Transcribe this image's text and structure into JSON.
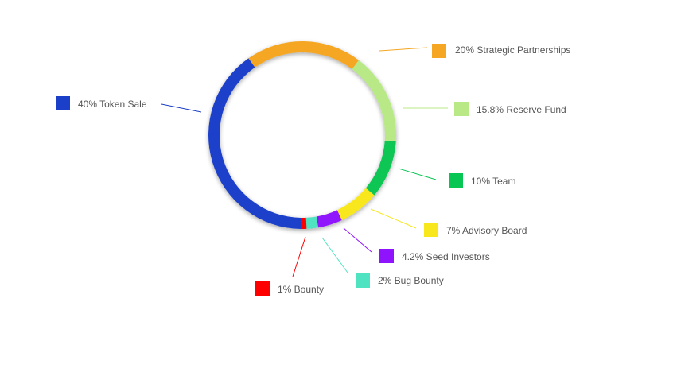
{
  "chart_data": {
    "type": "pie",
    "donut": true,
    "title": "",
    "slices": [
      {
        "label": "20% Strategic Partnerships",
        "value": 20,
        "color": "#f5a623"
      },
      {
        "label": "15.8% Reserve Fund",
        "value": 15.8,
        "color": "#b8e986"
      },
      {
        "label": "10% Team",
        "value": 10,
        "color": "#08c653"
      },
      {
        "label": "7% Advisory Board",
        "value": 7,
        "color": "#f8e71c"
      },
      {
        "label": "4.2% Seed Investors",
        "value": 4.2,
        "color": "#9013fe"
      },
      {
        "label": "2% Bug Bounty",
        "value": 2,
        "color": "#50e3c2"
      },
      {
        "label": "1% Bounty",
        "value": 1,
        "color": "#ff0000"
      },
      {
        "label": "40% Token Sale",
        "value": 40,
        "color": "#1c3fc9"
      }
    ]
  }
}
